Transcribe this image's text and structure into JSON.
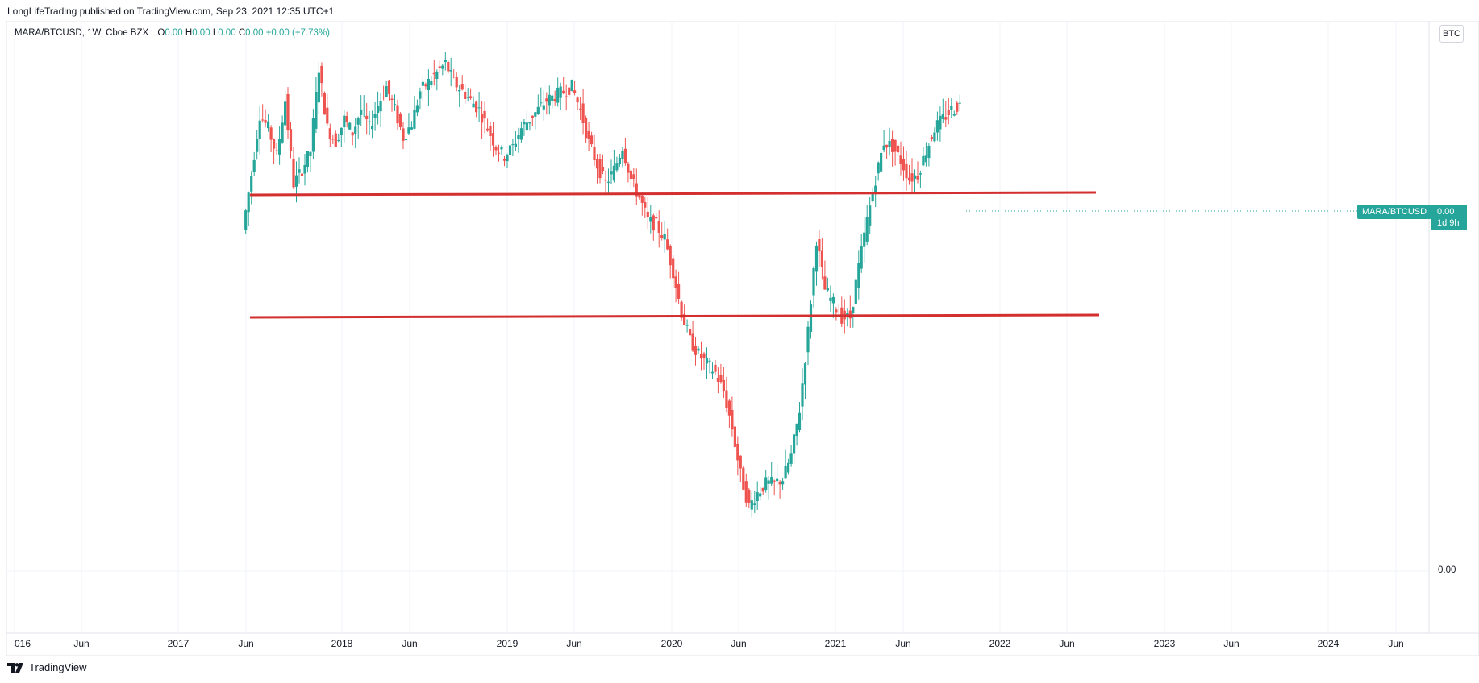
{
  "published_line": "LongLifeTrading published on TradingView.com, Sep 23, 2021 12:35 UTC+1",
  "legend": {
    "symbol": "MARA/BTCUSD, 1W, Cboe BZX",
    "o_label": "O",
    "o_value": "0.00",
    "h_label": "H",
    "h_value": "0.00",
    "l_label": "L",
    "l_value": "0.00",
    "c_label": "C",
    "c_value": "0.00",
    "change": "+0.00 (+7.73%)"
  },
  "unit_label": "BTC",
  "symbol_tag": "MARA/BTCUSD",
  "price_tag": {
    "price": "0.00",
    "countdown": "1d 9h"
  },
  "footer": {
    "logo_text": "TradingView"
  },
  "colors": {
    "up": "#26a69a",
    "down": "#ef5350",
    "line": "#d32f2f",
    "grid": "#f0f3fa"
  },
  "chart_data": {
    "type": "candlestick",
    "title": "MARA/BTCUSD, 1W, Cboe BZX",
    "x_axis": {
      "ticks": [
        "016",
        "Jun",
        "2017",
        "Jun",
        "2018",
        "Jun",
        "2019",
        "Jun",
        "2020",
        "Jun",
        "2021",
        "Jun",
        "2022",
        "Jun",
        "2023",
        "Jun",
        "2024",
        "Jun"
      ]
    },
    "y_axis": {
      "ticks": [
        "0.00"
      ]
    },
    "horizontal_lines": [
      {
        "name": "resistance",
        "from": "2017-06",
        "to": "2022-06"
      },
      {
        "name": "support",
        "from": "2017-06",
        "to": "2022-06"
      }
    ],
    "series_close_path": [
      0.6,
      0.72,
      0.85,
      0.82,
      0.76,
      0.88,
      0.7,
      0.73,
      0.77,
      0.95,
      0.82,
      0.79,
      0.84,
      0.81,
      0.86,
      0.82,
      0.87,
      0.91,
      0.86,
      0.8,
      0.83,
      0.9,
      0.92,
      0.94,
      0.96,
      0.92,
      0.9,
      0.88,
      0.86,
      0.82,
      0.78,
      0.76,
      0.78,
      0.82,
      0.84,
      0.86,
      0.88,
      0.89,
      0.9,
      0.91,
      0.86,
      0.79,
      0.74,
      0.7,
      0.73,
      0.78,
      0.71,
      0.67,
      0.62,
      0.61,
      0.58,
      0.51,
      0.42,
      0.36,
      0.33,
      0.31,
      0.29,
      0.25,
      0.17,
      0.07,
      0.0,
      0.03,
      0.05,
      0.05,
      0.06,
      0.11,
      0.21,
      0.38,
      0.58,
      0.47,
      0.44,
      0.41,
      0.41,
      0.52,
      0.62,
      0.71,
      0.79,
      0.78,
      0.75,
      0.71,
      0.72,
      0.77,
      0.82,
      0.84,
      0.86,
      0.87
    ]
  }
}
